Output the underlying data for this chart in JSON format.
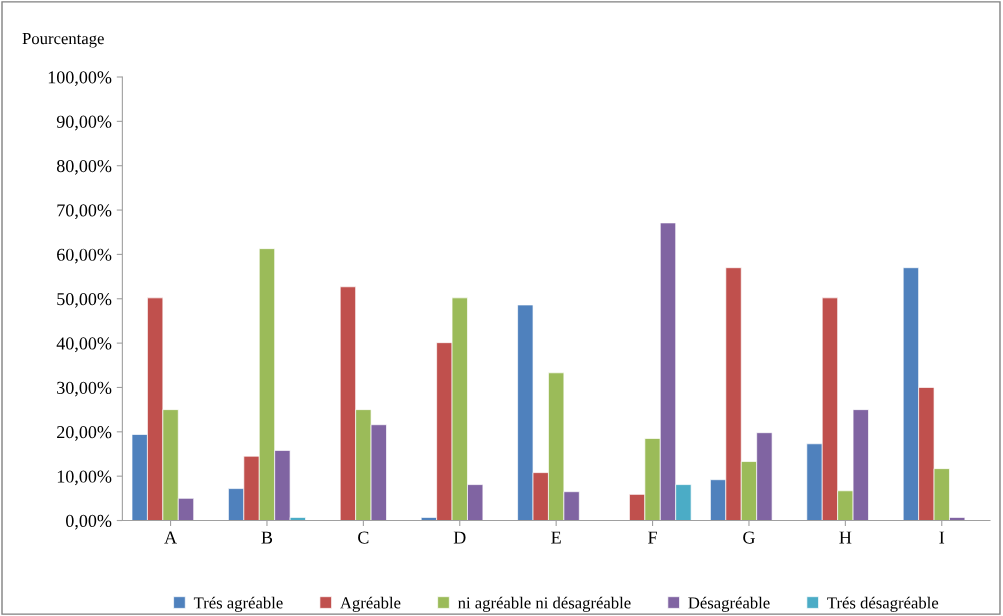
{
  "chart_data": {
    "type": "bar",
    "ylabel": "Pourcentage",
    "categories": [
      "A",
      "B",
      "C",
      "D",
      "E",
      "F",
      "G",
      "H",
      "I"
    ],
    "series": [
      {
        "name": "Trés agréable",
        "color": "#4f81bd",
        "values": [
          19.4,
          7.2,
          null,
          0.7,
          48.6,
          null,
          9.2,
          17.3,
          57.0
        ]
      },
      {
        "name": "Agréable",
        "color": "#c0504d",
        "values": [
          50.2,
          14.5,
          52.7,
          40.1,
          10.8,
          5.9,
          57.0,
          50.2,
          30.0
        ]
      },
      {
        "name": "ni agréable ni désagréable",
        "color": "#9bbb59",
        "values": [
          25.0,
          61.3,
          25.0,
          50.2,
          33.3,
          18.5,
          13.3,
          6.7,
          11.7
        ]
      },
      {
        "name": "Désagréable",
        "color": "#8064a2",
        "values": [
          5.0,
          15.8,
          21.6,
          8.1,
          6.5,
          67.1,
          19.8,
          25.0,
          0.7
        ]
      },
      {
        "name": "Trés désagréable",
        "color": "#4bacc6",
        "values": [
          null,
          0.7,
          null,
          null,
          null,
          8.1,
          null,
          null,
          null
        ]
      }
    ],
    "ylim": [
      0,
      100
    ],
    "yticks": [
      {
        "value": 0,
        "label": "0,00%"
      },
      {
        "value": 10,
        "label": "10,00%"
      },
      {
        "value": 20,
        "label": "20,00%"
      },
      {
        "value": 30,
        "label": "30,00%"
      },
      {
        "value": 40,
        "label": "40,00%"
      },
      {
        "value": 50,
        "label": "50,00%"
      },
      {
        "value": 60,
        "label": "60,00%"
      },
      {
        "value": 70,
        "label": "70,00%"
      },
      {
        "value": 80,
        "label": "80,00%"
      },
      {
        "value": 90,
        "label": "90,00%"
      },
      {
        "value": 100,
        "label": "100,00%"
      }
    ],
    "grid": false,
    "legend": "bottom"
  }
}
